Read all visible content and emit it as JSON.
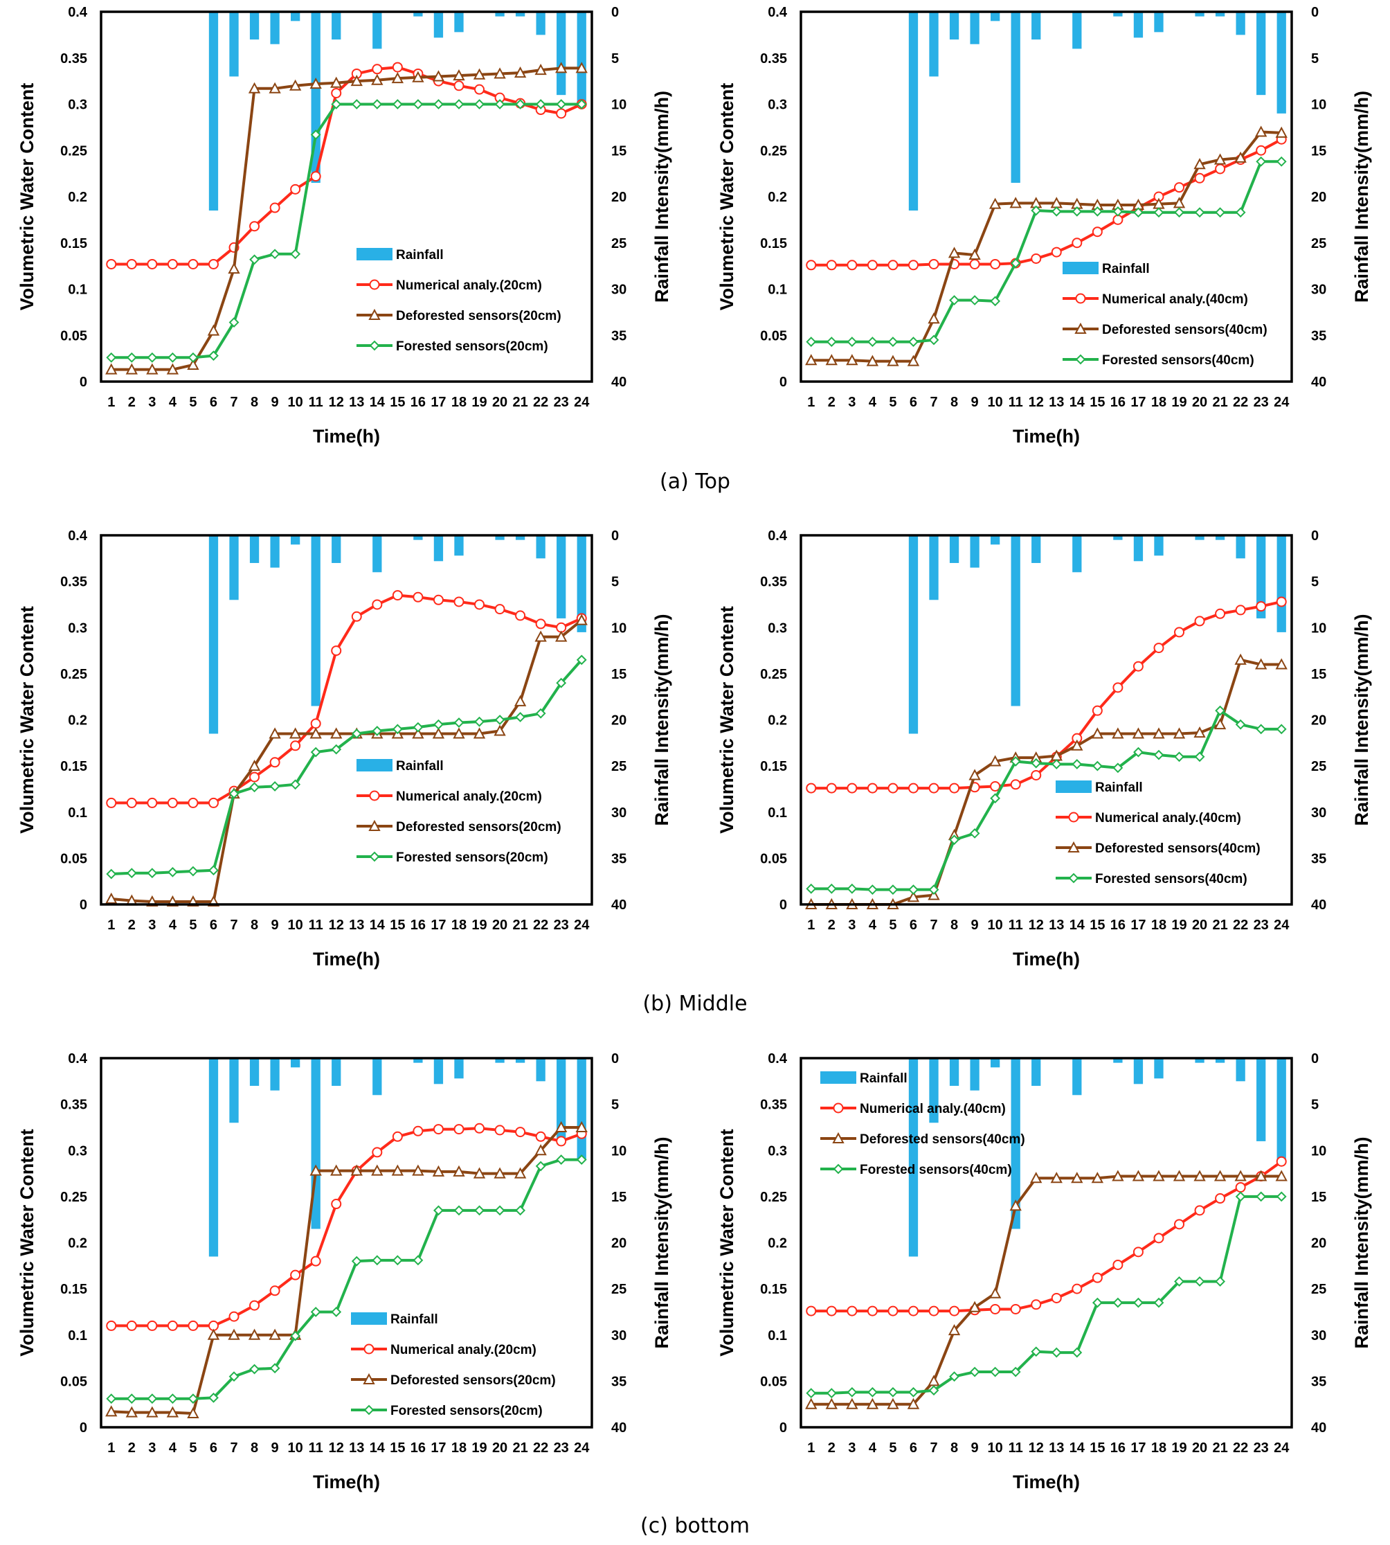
{
  "colors": {
    "rainfall": "#29B0E6",
    "numerical": "#FF2A1A",
    "deforested": "#8B4513",
    "forested": "#22B24C",
    "axis": "#000000"
  },
  "axes": {
    "xlabel": "Time(h)",
    "ylabel_left": "Volumetric Water Content",
    "ylabel_right": "Rainfall Intensity(mm/h)",
    "left_ticks": [
      "0",
      "0.05",
      "0.1",
      "0.15",
      "0.2",
      "0.25",
      "0.3",
      "0.35",
      "0.4"
    ],
    "right_ticks": [
      "0",
      "5",
      "10",
      "15",
      "20",
      "25",
      "30",
      "35",
      "40"
    ],
    "x_ticks": [
      "1",
      "2",
      "3",
      "4",
      "5",
      "6",
      "7",
      "8",
      "9",
      "10",
      "11",
      "12",
      "13",
      "14",
      "15",
      "16",
      "17",
      "18",
      "19",
      "20",
      "21",
      "22",
      "23",
      "24"
    ]
  },
  "captions": [
    "(a) Top",
    "(b) Middle",
    "(c) bottom"
  ],
  "chart_data": [
    {
      "type": "line",
      "position": "top-left",
      "xlabel": "Time(h)",
      "ylabel": "Volumetric Water Content",
      "y2label": "Rainfall Intensity(mm/h)",
      "ylim": [
        0,
        0.4
      ],
      "y2lim": [
        0,
        40
      ],
      "legend_position": "center-right",
      "categories": [
        1,
        2,
        3,
        4,
        5,
        6,
        7,
        8,
        9,
        10,
        11,
        12,
        13,
        14,
        15,
        16,
        17,
        18,
        19,
        20,
        21,
        22,
        23,
        24
      ],
      "rainfall": {
        "name": "Rainfall",
        "values": [
          0,
          0,
          0,
          0,
          0,
          21.5,
          7,
          3,
          3.5,
          1,
          18.5,
          3,
          0,
          4,
          0,
          0.5,
          2.8,
          2.2,
          0,
          0.5,
          0.5,
          2.5,
          9,
          10
        ]
      },
      "series": [
        {
          "name": "Numerical analy.(20cm)",
          "kind": "numerical",
          "values": [
            0.127,
            0.127,
            0.127,
            0.127,
            0.127,
            0.127,
            0.145,
            0.168,
            0.188,
            0.208,
            0.222,
            0.312,
            0.333,
            0.338,
            0.34,
            0.333,
            0.325,
            0.32,
            0.316,
            0.307,
            0.301,
            0.294,
            0.29,
            0.3
          ]
        },
        {
          "name": "Deforested sensors(20cm)",
          "kind": "deforested",
          "values": [
            0.013,
            0.013,
            0.013,
            0.013,
            0.018,
            0.055,
            0.122,
            0.317,
            0.317,
            0.32,
            0.322,
            0.323,
            0.325,
            0.326,
            0.328,
            0.329,
            0.33,
            0.331,
            0.332,
            0.333,
            0.334,
            0.337,
            0.339,
            0.339
          ]
        },
        {
          "name": "Forested sensors(20cm)",
          "kind": "forested",
          "values": [
            0.026,
            0.026,
            0.026,
            0.026,
            0.026,
            0.028,
            0.064,
            0.132,
            0.138,
            0.138,
            0.267,
            0.3,
            0.3,
            0.3,
            0.3,
            0.3,
            0.3,
            0.3,
            0.3,
            0.3,
            0.3,
            0.3,
            0.3,
            0.3
          ]
        }
      ]
    },
    {
      "type": "line",
      "position": "top-right",
      "xlabel": "Time(h)",
      "ylabel": "Volumetric Water Content",
      "y2label": "Rainfall Intensity(mm/h)",
      "ylim": [
        0,
        0.4
      ],
      "y2lim": [
        0,
        40
      ],
      "legend_position": "bottom-right",
      "categories": [
        1,
        2,
        3,
        4,
        5,
        6,
        7,
        8,
        9,
        10,
        11,
        12,
        13,
        14,
        15,
        16,
        17,
        18,
        19,
        20,
        21,
        22,
        23,
        24
      ],
      "rainfall": {
        "name": "Rainfall",
        "values": [
          0,
          0,
          0,
          0,
          0,
          21.5,
          7,
          3,
          3.5,
          1,
          18.5,
          3,
          0,
          4,
          0,
          0.5,
          2.8,
          2.2,
          0,
          0.5,
          0.5,
          2.5,
          9,
          11
        ]
      },
      "series": [
        {
          "name": "Numerical analy.(40cm)",
          "kind": "numerical",
          "values": [
            0.126,
            0.126,
            0.126,
            0.126,
            0.126,
            0.126,
            0.127,
            0.127,
            0.127,
            0.127,
            0.128,
            0.133,
            0.14,
            0.15,
            0.162,
            0.175,
            0.188,
            0.2,
            0.21,
            0.22,
            0.23,
            0.24,
            0.25,
            0.262
          ]
        },
        {
          "name": "Deforested sensors(40cm)",
          "kind": "deforested",
          "values": [
            0.023,
            0.023,
            0.023,
            0.022,
            0.022,
            0.022,
            0.068,
            0.139,
            0.137,
            0.192,
            0.193,
            0.193,
            0.193,
            0.192,
            0.191,
            0.191,
            0.191,
            0.192,
            0.193,
            0.235,
            0.24,
            0.242,
            0.27,
            0.269
          ]
        },
        {
          "name": "Forested sensors(40cm)",
          "kind": "forested",
          "values": [
            0.043,
            0.043,
            0.043,
            0.043,
            0.043,
            0.043,
            0.045,
            0.088,
            0.088,
            0.087,
            0.128,
            0.185,
            0.184,
            0.184,
            0.184,
            0.184,
            0.183,
            0.183,
            0.183,
            0.183,
            0.183,
            0.183,
            0.238,
            0.238
          ]
        }
      ]
    },
    {
      "type": "line",
      "position": "middle-left",
      "xlabel": "Time(h)",
      "ylabel": "Volumetric Water Content",
      "y2label": "Rainfall Intensity(mm/h)",
      "ylim": [
        0,
        0.4
      ],
      "y2lim": [
        0,
        40
      ],
      "legend_position": "center-right",
      "categories": [
        1,
        2,
        3,
        4,
        5,
        6,
        7,
        8,
        9,
        10,
        11,
        12,
        13,
        14,
        15,
        16,
        17,
        18,
        19,
        20,
        21,
        22,
        23,
        24
      ],
      "rainfall": {
        "name": "Rainfall",
        "values": [
          0,
          0,
          0,
          0,
          0,
          21.5,
          7,
          3,
          3.5,
          1,
          18.5,
          3,
          0,
          4,
          0,
          0.5,
          2.8,
          2.2,
          0,
          0.5,
          0.5,
          2.5,
          9,
          10.5
        ]
      },
      "series": [
        {
          "name": "Numerical analy.(20cm)",
          "kind": "numerical",
          "values": [
            0.11,
            0.11,
            0.11,
            0.11,
            0.11,
            0.11,
            0.123,
            0.138,
            0.154,
            0.172,
            0.196,
            0.275,
            0.312,
            0.325,
            0.335,
            0.333,
            0.33,
            0.328,
            0.325,
            0.32,
            0.313,
            0.304,
            0.3,
            0.31
          ]
        },
        {
          "name": "Deforested sensors(20cm)",
          "kind": "deforested",
          "values": [
            0.006,
            0.004,
            0.003,
            0.003,
            0.003,
            0.003,
            0.12,
            0.15,
            0.185,
            0.185,
            0.185,
            0.185,
            0.185,
            0.185,
            0.185,
            0.185,
            0.185,
            0.185,
            0.185,
            0.188,
            0.22,
            0.29,
            0.29,
            0.308
          ]
        },
        {
          "name": "Forested sensors(20cm)",
          "kind": "forested",
          "values": [
            0.033,
            0.034,
            0.034,
            0.035,
            0.036,
            0.037,
            0.12,
            0.127,
            0.128,
            0.13,
            0.165,
            0.168,
            0.185,
            0.188,
            0.19,
            0.192,
            0.195,
            0.197,
            0.198,
            0.2,
            0.203,
            0.207,
            0.24,
            0.265
          ]
        }
      ]
    },
    {
      "type": "line",
      "position": "middle-right",
      "xlabel": "Time(h)",
      "ylabel": "Volumetric Water Content",
      "y2label": "Rainfall Intensity(mm/h)",
      "ylim": [
        0,
        0.4
      ],
      "y2lim": [
        0,
        40
      ],
      "legend_position": "bottom-right",
      "categories": [
        1,
        2,
        3,
        4,
        5,
        6,
        7,
        8,
        9,
        10,
        11,
        12,
        13,
        14,
        15,
        16,
        17,
        18,
        19,
        20,
        21,
        22,
        23,
        24
      ],
      "rainfall": {
        "name": "Rainfall",
        "values": [
          0,
          0,
          0,
          0,
          0,
          21.5,
          7,
          3,
          3.5,
          1,
          18.5,
          3,
          0,
          4,
          0,
          0.5,
          2.8,
          2.2,
          0,
          0.5,
          0.5,
          2.5,
          9,
          10.5
        ]
      },
      "series": [
        {
          "name": "Numerical analy.(40cm)",
          "kind": "numerical",
          "values": [
            0.126,
            0.126,
            0.126,
            0.126,
            0.126,
            0.126,
            0.126,
            0.126,
            0.127,
            0.128,
            0.13,
            0.14,
            0.16,
            0.18,
            0.21,
            0.235,
            0.258,
            0.278,
            0.295,
            0.307,
            0.315,
            0.319,
            0.323,
            0.328
          ]
        },
        {
          "name": "Deforested sensors(40cm)",
          "kind": "deforested",
          "values": [
            0,
            0,
            0,
            0,
            0,
            0.008,
            0.01,
            0.075,
            0.14,
            0.155,
            0.159,
            0.159,
            0.161,
            0.172,
            0.185,
            0.185,
            0.185,
            0.185,
            0.185,
            0.186,
            0.195,
            0.265,
            0.26,
            0.26
          ]
        },
        {
          "name": "Forested sensors(40cm)",
          "kind": "forested",
          "values": [
            0.017,
            0.017,
            0.017,
            0.016,
            0.016,
            0.016,
            0.016,
            0.07,
            0.077,
            0.115,
            0.155,
            0.153,
            0.152,
            0.152,
            0.15,
            0.148,
            0.165,
            0.162,
            0.16,
            0.16,
            0.21,
            0.195,
            0.19,
            0.19
          ]
        }
      ]
    },
    {
      "type": "line",
      "position": "bottom-left",
      "xlabel": "Time(h)",
      "ylabel": "Volumetric Water Content",
      "y2label": "Rainfall Intensity(mm/h)",
      "ylim": [
        0,
        0.4
      ],
      "y2lim": [
        0,
        40
      ],
      "legend_position": "bottom-right",
      "categories": [
        1,
        2,
        3,
        4,
        5,
        6,
        7,
        8,
        9,
        10,
        11,
        12,
        13,
        14,
        15,
        16,
        17,
        18,
        19,
        20,
        21,
        22,
        23,
        24
      ],
      "rainfall": {
        "name": "Rainfall",
        "values": [
          0,
          0,
          0,
          0,
          0,
          21.5,
          7,
          3,
          3.5,
          1,
          18.5,
          3,
          0,
          4,
          0,
          0.5,
          2.8,
          2.2,
          0,
          0.5,
          0.5,
          2.5,
          9,
          11
        ]
      },
      "series": [
        {
          "name": "Numerical analy.(20cm)",
          "kind": "numerical",
          "values": [
            0.11,
            0.11,
            0.11,
            0.11,
            0.11,
            0.11,
            0.12,
            0.132,
            0.148,
            0.165,
            0.18,
            0.242,
            0.278,
            0.298,
            0.315,
            0.321,
            0.323,
            0.323,
            0.324,
            0.322,
            0.32,
            0.315,
            0.31,
            0.318
          ]
        },
        {
          "name": "Deforested sensors(20cm)",
          "kind": "deforested",
          "values": [
            0.017,
            0.016,
            0.016,
            0.016,
            0.015,
            0.1,
            0.1,
            0.1,
            0.1,
            0.1,
            0.278,
            0.278,
            0.278,
            0.278,
            0.278,
            0.278,
            0.277,
            0.277,
            0.275,
            0.275,
            0.275,
            0.3,
            0.325,
            0.325
          ]
        },
        {
          "name": "Forested sensors(20cm)",
          "kind": "forested",
          "values": [
            0.031,
            0.031,
            0.031,
            0.031,
            0.031,
            0.032,
            0.055,
            0.063,
            0.064,
            0.099,
            0.125,
            0.125,
            0.18,
            0.181,
            0.181,
            0.181,
            0.235,
            0.235,
            0.235,
            0.235,
            0.235,
            0.283,
            0.29,
            0.29
          ]
        }
      ]
    },
    {
      "type": "line",
      "position": "bottom-right",
      "xlabel": "Time(h)",
      "ylabel": "Volumetric Water Content",
      "y2label": "Rainfall Intensity(mm/h)",
      "ylim": [
        0,
        0.4
      ],
      "y2lim": [
        0,
        40
      ],
      "legend_position": "top-left",
      "categories": [
        1,
        2,
        3,
        4,
        5,
        6,
        7,
        8,
        9,
        10,
        11,
        12,
        13,
        14,
        15,
        16,
        17,
        18,
        19,
        20,
        21,
        22,
        23,
        24
      ],
      "rainfall": {
        "name": "Rainfall",
        "values": [
          0,
          0,
          0,
          0,
          0,
          21.5,
          7,
          3,
          3.5,
          1,
          18.5,
          3,
          0,
          4,
          0,
          0.5,
          2.8,
          2.2,
          0,
          0.5,
          0.5,
          2.5,
          9,
          11
        ]
      },
      "series": [
        {
          "name": "Numerical analy.(40cm)",
          "kind": "numerical",
          "values": [
            0.126,
            0.126,
            0.126,
            0.126,
            0.126,
            0.126,
            0.126,
            0.126,
            0.127,
            0.128,
            0.128,
            0.133,
            0.14,
            0.15,
            0.162,
            0.176,
            0.19,
            0.205,
            0.22,
            0.235,
            0.248,
            0.26,
            0.272,
            0.288
          ]
        },
        {
          "name": "Deforested sensors(40cm)",
          "kind": "deforested",
          "values": [
            0.025,
            0.025,
            0.025,
            0.025,
            0.025,
            0.025,
            0.05,
            0.105,
            0.13,
            0.145,
            0.24,
            0.27,
            0.27,
            0.27,
            0.27,
            0.272,
            0.272,
            0.272,
            0.272,
            0.272,
            0.272,
            0.272,
            0.272,
            0.272
          ]
        },
        {
          "name": "Forested sensors(40cm)",
          "kind": "forested",
          "values": [
            0.037,
            0.037,
            0.038,
            0.038,
            0.038,
            0.038,
            0.04,
            0.055,
            0.06,
            0.06,
            0.06,
            0.082,
            0.081,
            0.081,
            0.135,
            0.135,
            0.135,
            0.135,
            0.158,
            0.158,
            0.158,
            0.25,
            0.25,
            0.25
          ]
        }
      ]
    }
  ]
}
